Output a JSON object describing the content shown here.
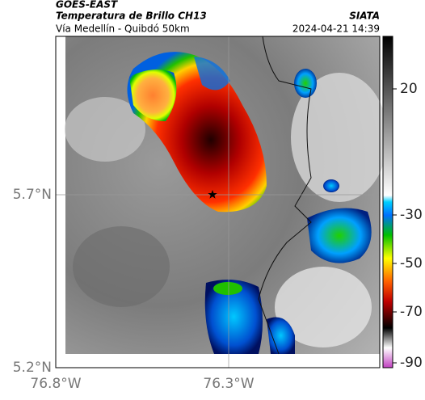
{
  "header": {
    "product": "GOES-EAST",
    "title": "Temperatura de Brillo CH13",
    "source": "SIATA",
    "subtitle": "Vía Medellín - Quibdó 50km",
    "timestamp": "2024-04-21 14:39"
  },
  "map": {
    "lat_labels": [
      "5.7°N",
      "5.2°N"
    ],
    "lon_labels": [
      "76.8°W",
      "76.3°W"
    ]
  },
  "colorbar": {
    "tick_labels": [
      "20",
      "-30",
      "-50",
      "-70",
      "-90"
    ]
  }
}
